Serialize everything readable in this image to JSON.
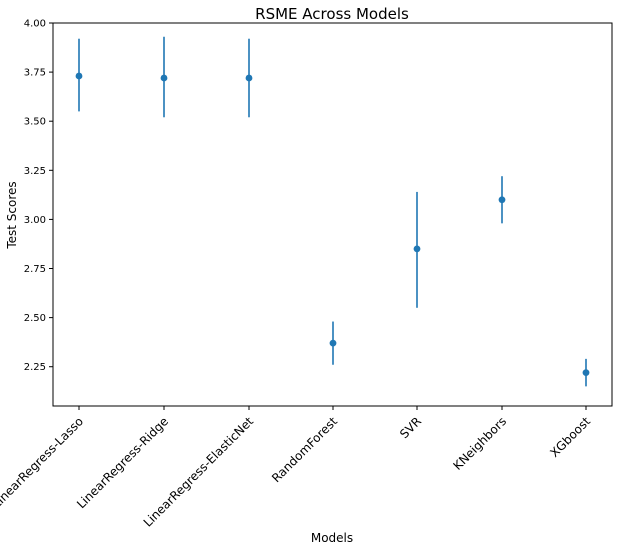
{
  "chart_data": {
    "type": "scatter",
    "title": "RSME Across Models",
    "xlabel": "Models",
    "ylabel": "Test Scores",
    "categories": [
      "LinearRegress-Lasso",
      "LinearRegress-Ridge",
      "LinearRegress-ElasticNet",
      "RandomForest",
      "SVR",
      "KNeighbors",
      "XGboost"
    ],
    "values": [
      3.73,
      3.72,
      3.72,
      2.37,
      2.85,
      3.1,
      2.22
    ],
    "error_low": [
      3.55,
      3.52,
      3.52,
      2.26,
      2.55,
      2.98,
      2.15
    ],
    "error_high": [
      3.92,
      3.93,
      3.92,
      2.48,
      3.14,
      3.22,
      2.29
    ],
    "ylim": [
      2.05,
      4.0
    ],
    "yticks": [
      "2.25",
      "2.50",
      "2.75",
      "3.00",
      "3.25",
      "3.50",
      "3.75",
      "4.00"
    ],
    "grid": false,
    "colors": {
      "series": "#1f77b4"
    }
  }
}
